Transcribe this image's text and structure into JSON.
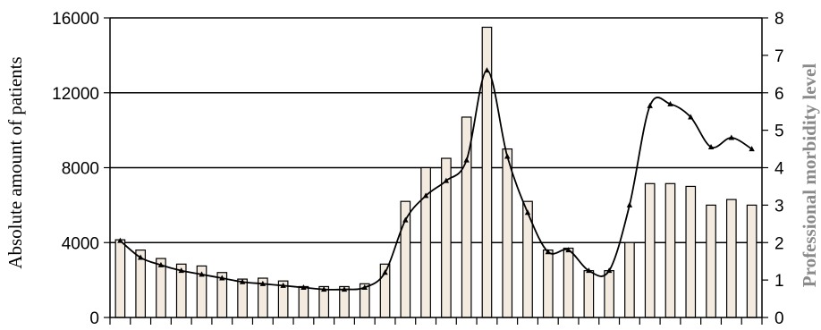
{
  "chart_data": {
    "type": "bar",
    "xlabel": "",
    "ylabel": "Absolute amount of patients",
    "y2label": "Professional morbidity level",
    "ylim": [
      0,
      16000
    ],
    "y2lim": [
      0,
      8
    ],
    "yticks": [
      0,
      4000,
      8000,
      12000,
      16000
    ],
    "y2ticks": [
      0,
      1,
      2,
      3,
      4,
      5,
      6,
      7,
      8
    ],
    "grid": true,
    "legend": "none",
    "colors": {
      "bar_fill": "#f3ebe0",
      "bar_stroke": "#000000",
      "line": "#000000",
      "grid": "#000000"
    },
    "series": [
      {
        "type": "bar",
        "axis": "left",
        "values": [
          4150,
          3600,
          3150,
          2850,
          2750,
          2400,
          2050,
          2100,
          1950,
          1650,
          1650,
          1650,
          1800,
          2850,
          6200,
          8000,
          8500,
          10700,
          15500,
          9000,
          6200,
          3600,
          3700,
          2500,
          2500,
          4000,
          7150,
          7150,
          7000,
          6000,
          6300,
          6000
        ]
      },
      {
        "type": "line",
        "axis": "right",
        "values": [
          2.05,
          1.6,
          1.4,
          1.25,
          1.15,
          1.05,
          0.95,
          0.9,
          0.85,
          0.8,
          0.75,
          0.75,
          0.8,
          1.2,
          2.6,
          3.25,
          3.65,
          4.2,
          6.6,
          4.3,
          2.8,
          1.75,
          1.8,
          1.25,
          1.25,
          3.0,
          5.65,
          5.7,
          5.35,
          4.55,
          4.8,
          4.5
        ]
      }
    ]
  }
}
